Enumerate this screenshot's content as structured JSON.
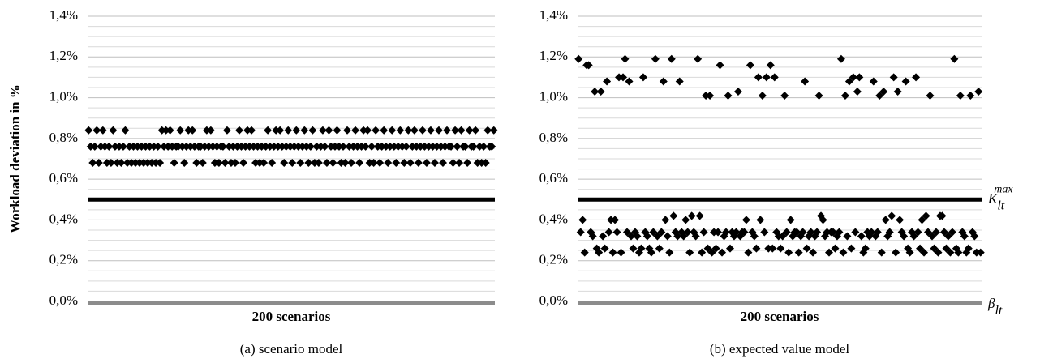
{
  "chart_data": [
    {
      "type": "scatter",
      "caption": "(a)  scenario model",
      "ylabel": "Workload deviation in %",
      "xlabel": "200 scenarios",
      "ylim": [
        0,
        1.4
      ],
      "yticks": [
        {
          "value": 0,
          "label": "0,0%"
        },
        {
          "value": 0.2,
          "label": "0,2%"
        },
        {
          "value": 0.4,
          "label": "0,4%"
        },
        {
          "value": 0.6,
          "label": "0,6%"
        },
        {
          "value": 0.8,
          "label": "0,8%"
        },
        {
          "value": 1.0,
          "label": "1,0%"
        },
        {
          "value": 1.2,
          "label": "1,2%"
        },
        {
          "value": 1.4,
          "label": "1,4%"
        }
      ],
      "grid": true,
      "color": "#000000",
      "marker": "diamond",
      "threshold": 0.5,
      "values": [
        0.84,
        0.76,
        0.68,
        0.76,
        0.84,
        0.68,
        0.76,
        0.84,
        0.76,
        0.68,
        0.76,
        0.68,
        0.84,
        0.76,
        0.68,
        0.76,
        0.68,
        0.76,
        0.84,
        0.68,
        0.76,
        0.68,
        0.76,
        0.68,
        0.76,
        0.68,
        0.76,
        0.68,
        0.76,
        0.68,
        0.76,
        0.68,
        0.76,
        0.68,
        0.76,
        0.68,
        0.84,
        0.76,
        0.84,
        0.76,
        0.84,
        0.76,
        0.68,
        0.76,
        0.76,
        0.84,
        0.76,
        0.68,
        0.76,
        0.84,
        0.76,
        0.84,
        0.76,
        0.68,
        0.76,
        0.76,
        0.68,
        0.76,
        0.84,
        0.76,
        0.84,
        0.76,
        0.68,
        0.76,
        0.68,
        0.76,
        0.76,
        0.68,
        0.84,
        0.76,
        0.68,
        0.76,
        0.68,
        0.76,
        0.84,
        0.76,
        0.68,
        0.76,
        0.84,
        0.76,
        0.84,
        0.76,
        0.68,
        0.76,
        0.68,
        0.76,
        0.68,
        0.76,
        0.84,
        0.76,
        0.68,
        0.76,
        0.84,
        0.76,
        0.84,
        0.76,
        0.68,
        0.76,
        0.84,
        0.76,
        0.68,
        0.76,
        0.84,
        0.76,
        0.68,
        0.76,
        0.84,
        0.76,
        0.68,
        0.76,
        0.84,
        0.68,
        0.76,
        0.68,
        0.76,
        0.84,
        0.76,
        0.68,
        0.84,
        0.76,
        0.68,
        0.76,
        0.84,
        0.76,
        0.68,
        0.76,
        0.68,
        0.84,
        0.76,
        0.68,
        0.76,
        0.84,
        0.76,
        0.68,
        0.76,
        0.84,
        0.76,
        0.84,
        0.68,
        0.76,
        0.68,
        0.84,
        0.76,
        0.68,
        0.76,
        0.84,
        0.76,
        0.68,
        0.76,
        0.84,
        0.76,
        0.68,
        0.76,
        0.84,
        0.76,
        0.68,
        0.76,
        0.84,
        0.68,
        0.76,
        0.84,
        0.76,
        0.68,
        0.76,
        0.84,
        0.76,
        0.68,
        0.76,
        0.84,
        0.76,
        0.68,
        0.76,
        0.84,
        0.76,
        0.68,
        0.76,
        0.84,
        0.76,
        0.76,
        0.68,
        0.84,
        0.76,
        0.68,
        0.84,
        0.76,
        0.76,
        0.68,
        0.84,
        0.76,
        0.76,
        0.84,
        0.68,
        0.76,
        0.68,
        0.76,
        0.68,
        0.84,
        0.76,
        0.76,
        0.84
      ]
    },
    {
      "type": "scatter",
      "caption": "(b)  expected value model",
      "xlabel": "200 scenarios",
      "ylim": [
        0,
        1.4
      ],
      "yticks": [
        {
          "value": 0,
          "label": "0,0%"
        },
        {
          "value": 0.2,
          "label": "0,2%"
        },
        {
          "value": 0.4,
          "label": "0,4%"
        },
        {
          "value": 0.6,
          "label": "0,6%"
        },
        {
          "value": 0.8,
          "label": "0,8%"
        },
        {
          "value": 1.0,
          "label": "1,0%"
        },
        {
          "value": 1.2,
          "label": "1,2%"
        },
        {
          "value": 1.4,
          "label": "1,4%"
        }
      ],
      "grid": true,
      "color": "#000000",
      "marker": "diamond",
      "threshold": 0.5,
      "threshold_label": {
        "base": "K",
        "sub": "lt",
        "sup": "max"
      },
      "baseline_label": {
        "base": "β",
        "sub": "lt"
      },
      "values": [
        1.19,
        0.34,
        0.4,
        0.24,
        1.16,
        1.16,
        0.34,
        0.32,
        1.03,
        0.26,
        0.24,
        1.03,
        0.32,
        0.26,
        1.08,
        0.34,
        0.4,
        0.24,
        0.4,
        0.34,
        1.1,
        0.24,
        1.1,
        1.19,
        0.34,
        1.08,
        0.32,
        0.26,
        0.34,
        0.32,
        0.24,
        0.26,
        1.1,
        0.34,
        0.32,
        0.26,
        0.24,
        0.34,
        1.19,
        0.32,
        0.26,
        0.34,
        1.08,
        0.4,
        0.32,
        0.24,
        1.19,
        0.42,
        0.34,
        0.32,
        1.08,
        0.34,
        0.32,
        0.4,
        0.34,
        0.24,
        0.42,
        0.34,
        0.32,
        1.19,
        0.42,
        0.24,
        0.34,
        1.01,
        0.26,
        1.01,
        0.24,
        0.34,
        0.26,
        0.34,
        1.16,
        0.24,
        0.32,
        0.34,
        1.01,
        0.26,
        0.34,
        0.32,
        0.34,
        1.03,
        0.32,
        0.34,
        0.34,
        0.4,
        0.24,
        1.16,
        0.34,
        0.32,
        0.26,
        1.1,
        0.4,
        1.01,
        0.34,
        1.1,
        0.26,
        1.16,
        0.26,
        1.1,
        0.34,
        0.32,
        0.26,
        0.32,
        1.01,
        0.34,
        0.24,
        0.4,
        0.32,
        0.34,
        0.34,
        0.24,
        0.32,
        0.34,
        1.08,
        0.26,
        0.32,
        0.34,
        0.24,
        0.32,
        0.34,
        1.01,
        0.42,
        0.4,
        0.32,
        0.34,
        0.24,
        0.34,
        0.34,
        0.26,
        0.32,
        0.34,
        1.19,
        0.24,
        1.01,
        0.32,
        1.08,
        0.26,
        1.1,
        0.34,
        1.03,
        1.1,
        0.32,
        0.24,
        0.26,
        0.34,
        0.32,
        0.34,
        1.08,
        0.32,
        0.34,
        1.01,
        0.24,
        1.03,
        0.4,
        0.32,
        0.34,
        0.42,
        1.1,
        0.24,
        1.03,
        0.4,
        0.34,
        0.32,
        1.08,
        0.26,
        0.24,
        0.34,
        0.32,
        1.1,
        0.34,
        0.26,
        0.4,
        0.24,
        0.42,
        0.34,
        1.01,
        0.32,
        0.26,
        0.34,
        0.24,
        0.42,
        0.42,
        0.34,
        0.26,
        0.32,
        0.24,
        0.34,
        1.19,
        0.26,
        0.24,
        1.01,
        0.34,
        0.32,
        0.24,
        0.26,
        1.01,
        0.34,
        0.32,
        0.24,
        1.03,
        0.24
      ]
    }
  ]
}
